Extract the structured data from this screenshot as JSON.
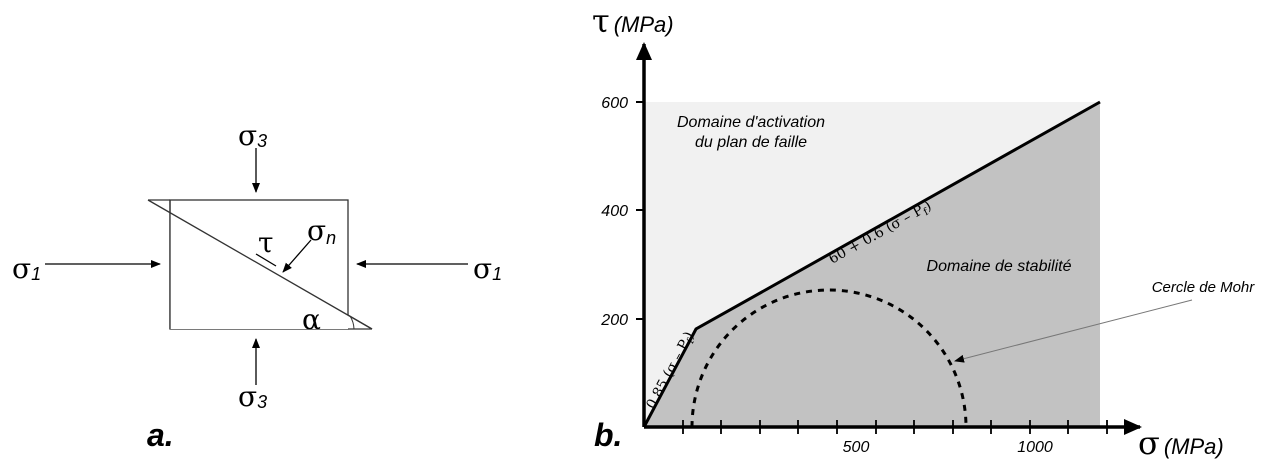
{
  "panel_a": {
    "label": "a.",
    "sigma1": "σ",
    "sigma1_sub": "1",
    "sigma3": "σ",
    "sigma3_sub": "3",
    "sigma_n": "σ",
    "sigma_n_sub": "n",
    "tau": "τ",
    "alpha": "α"
  },
  "panel_b": {
    "label": "b.",
    "y_axis_symbol": "τ",
    "y_axis_unit": "(MPa)",
    "x_axis_symbol": "σ",
    "x_axis_unit": "(MPa)",
    "y_ticks": [
      "600",
      "400",
      "200"
    ],
    "x_ticks": [
      "500",
      "1000"
    ],
    "region_activation_line1": "Domaine d'activation",
    "region_activation_line2": "du plan de faille",
    "region_stability": "Domaine de stabilité",
    "mohr_label": "Cercle de Mohr",
    "law_low": "0.85 (σ – P",
    "law_low_sub": "f",
    "law_high": "60 + 0.6 (σ – P",
    "law_high_sub": "f",
    "close_paren": ")"
  }
}
